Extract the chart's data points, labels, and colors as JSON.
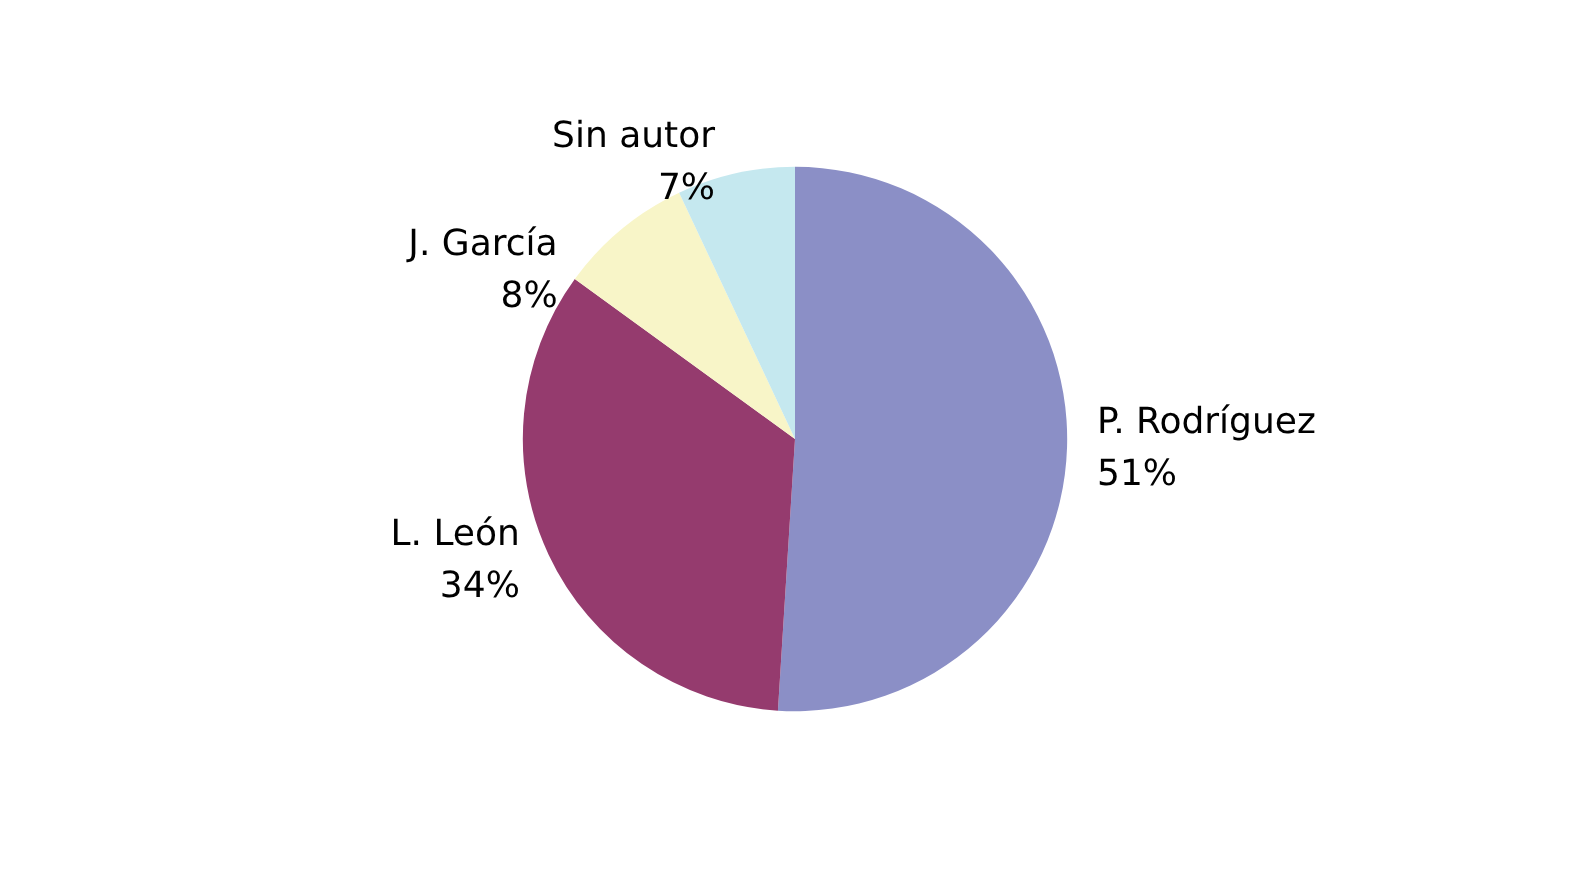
{
  "chart_data": {
    "type": "pie",
    "categories": [
      "P. Rodríguez",
      "L. León",
      "J. García",
      "Sin autor"
    ],
    "values": [
      51,
      34,
      8,
      7
    ],
    "value_labels": [
      "51%",
      "34%",
      "8%",
      "7%"
    ],
    "colors": [
      "#8b8fc6",
      "#953b6e",
      "#f8f5c8",
      "#c5e8ef"
    ],
    "legend": false
  }
}
